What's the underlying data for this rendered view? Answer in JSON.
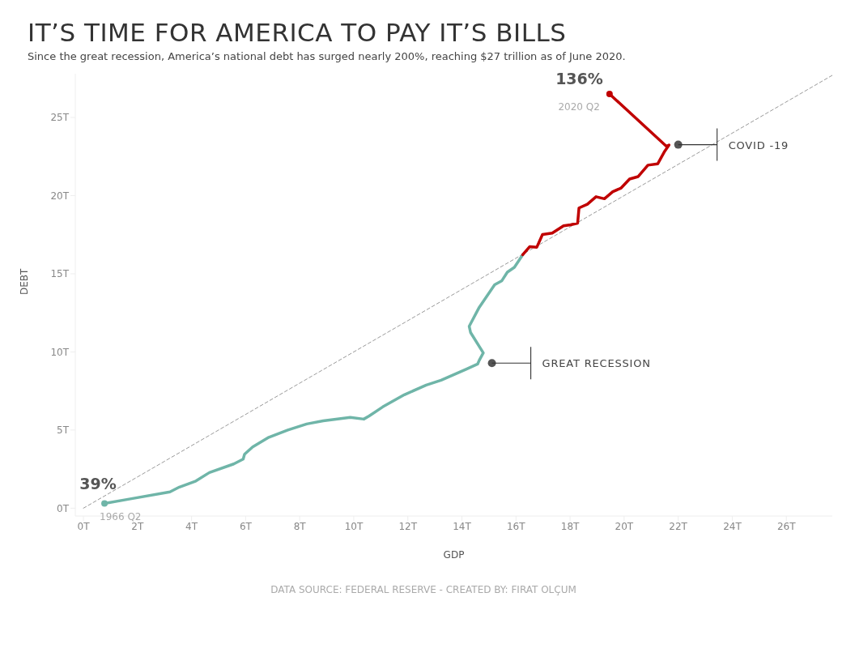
{
  "chart_data": {
    "type": "line",
    "title": "IT’S TIME FOR AMERICA TO PAY IT’S BILLS",
    "subtitle": "Since the great recession, America’s national debt has surged nearly 200%, reaching $27 trillion as of June 2020.",
    "xlabel": "GDP",
    "ylabel": "DEBT",
    "xlim": [
      -0.3,
      27.7
    ],
    "ylim": [
      -0.5,
      27.8
    ],
    "xticks": [
      {
        "value": 0,
        "label": "0T"
      },
      {
        "value": 2,
        "label": "2T"
      },
      {
        "value": 4,
        "label": "4T"
      },
      {
        "value": 6,
        "label": "6T"
      },
      {
        "value": 8,
        "label": "8T"
      },
      {
        "value": 10,
        "label": "10T"
      },
      {
        "value": 12,
        "label": "12T"
      },
      {
        "value": 14,
        "label": "14T"
      },
      {
        "value": 16,
        "label": "16T"
      },
      {
        "value": 18,
        "label": "18T"
      },
      {
        "value": 20,
        "label": "20T"
      },
      {
        "value": 22,
        "label": "22T"
      },
      {
        "value": 24,
        "label": "24T"
      },
      {
        "value": 26,
        "label": "26T"
      }
    ],
    "yticks": [
      {
        "value": 0,
        "label": "0T"
      },
      {
        "value": 5,
        "label": "5T"
      },
      {
        "value": 10,
        "label": "10T"
      },
      {
        "value": 15,
        "label": "15T"
      },
      {
        "value": 20,
        "label": "20T"
      },
      {
        "value": 25,
        "label": "25T"
      }
    ],
    "grid": false,
    "marker": "none",
    "series": [
      {
        "color": "#9a9a9a",
        "line_style": "dashed",
        "x": [
          0,
          27.7
        ],
        "values": [
          0,
          27.7
        ]
      },
      {
        "color": "#6fb5a8",
        "x": [
          0.78,
          1.65,
          3.2,
          3.55,
          4.16,
          4.66,
          5.56,
          5.91,
          5.96,
          6.26,
          6.86,
          7.56,
          8.26,
          8.87,
          9.87,
          10.37,
          10.57,
          11.07,
          11.87,
          12.68,
          13.23,
          14.17,
          14.58,
          14.64,
          14.79,
          14.32,
          14.27,
          14.64,
          15.21,
          15.47,
          15.68,
          15.94,
          16.25
        ],
        "values": [
          0.3,
          0.57,
          1.04,
          1.35,
          1.74,
          2.28,
          2.83,
          3.14,
          3.45,
          3.92,
          4.54,
          5.0,
          5.39,
          5.59,
          5.81,
          5.7,
          5.9,
          6.48,
          7.26,
          7.88,
          8.19,
          8.9,
          9.22,
          9.46,
          9.94,
          11.24,
          11.64,
          12.85,
          14.3,
          14.54,
          15.1,
          15.41,
          16.22
        ]
      },
      {
        "color": "#c00000",
        "x": [
          16.25,
          16.51,
          16.77,
          16.98,
          17.34,
          17.76,
          18.02,
          18.28,
          18.33,
          18.64,
          18.96,
          19.27,
          19.58,
          19.89,
          20.2,
          20.52,
          20.88,
          21.24,
          21.5,
          21.66,
          21.56,
          19.46
        ],
        "values": [
          16.22,
          16.74,
          16.7,
          17.51,
          17.6,
          18.07,
          18.13,
          18.24,
          19.21,
          19.45,
          19.93,
          19.8,
          20.25,
          20.49,
          21.06,
          21.22,
          21.95,
          22.03,
          22.84,
          23.24,
          23.16,
          26.5
        ]
      }
    ],
    "annotations": [
      {
        "text": "39%",
        "x": 0.78,
        "y": 0.3
      },
      {
        "text": "1966 Q2",
        "x": 0.78,
        "y": 0.3
      },
      {
        "text": "136%",
        "x": 19.46,
        "y": 26.5
      },
      {
        "text": "2020 Q2",
        "x": 19.46,
        "y": 26.5
      },
      {
        "text": "GREAT RECESSION",
        "x": 15.11,
        "y": 9.28
      },
      {
        "text": "COVID -19",
        "x": 22.0,
        "y": 23.26
      },
      "DATA SOURCE: FEDERAL RESERVE - CREATED BY: FIRAT OLÇUM"
    ]
  }
}
